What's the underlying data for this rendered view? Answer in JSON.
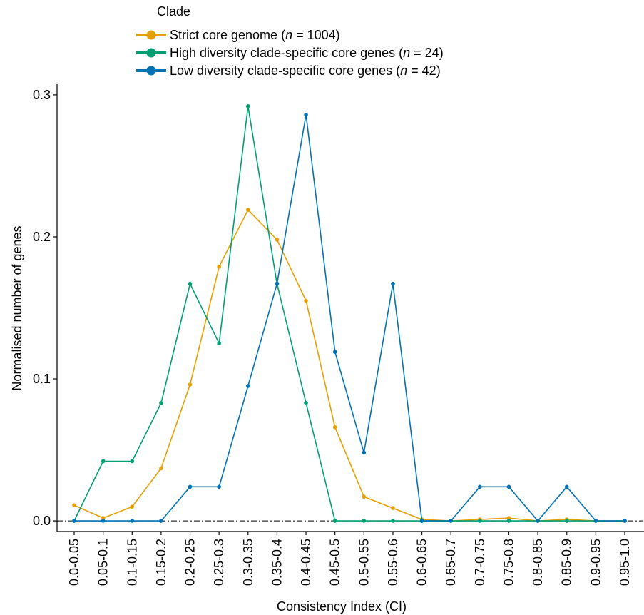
{
  "chart_data": {
    "type": "line",
    "legend": {
      "title": "Clade",
      "placement": "top-left",
      "entries": [
        {
          "prefix": "Strict core genome (",
          "n_symbol": "n",
          "suffix": " = 1004)"
        },
        {
          "prefix": "High diversity clade-specific core genes (",
          "n_symbol": "n",
          "suffix": " = 24)"
        },
        {
          "prefix": "Low diversity clade-specific core genes (",
          "n_symbol": "n",
          "suffix": " = 42)"
        }
      ]
    },
    "xlabel": "Consistency Index (CI)",
    "ylabel": "Normalised number of genes",
    "ylim": [
      -0.0075,
      0.3075
    ],
    "yticks": [
      0.0,
      0.1,
      0.2,
      0.3
    ],
    "ytick_labels": [
      "0.0",
      "0.1",
      "0.2",
      "0.3"
    ],
    "reference_line": {
      "y": 0,
      "style": "dash-dot"
    },
    "grid": false,
    "categories": [
      "0.0-0.05",
      "0.05-0.1",
      "0.1-0.15",
      "0.15-0.2",
      "0.2-0.25",
      "0.25-0.3",
      "0.3-0.35",
      "0.35-0.4",
      "0.4-0.45",
      "0.45-0.5",
      "0.5-0.55",
      "0.55-0.6",
      "0.6-0.65",
      "0.65-0.7",
      "0.7-0.75",
      "0.75-0.8",
      "0.8-0.85",
      "0.85-0.9",
      "0.9-0.95",
      "0.95-1.0"
    ],
    "series": [
      {
        "color": "#E69F00",
        "values": [
          0.011,
          0.002,
          0.01,
          0.037,
          0.096,
          0.179,
          0.219,
          0.198,
          0.155,
          0.066,
          0.017,
          0.009,
          0.001,
          0.0,
          0.001,
          0.002,
          0.0,
          0.001,
          0.0,
          0.0
        ]
      },
      {
        "color": "#009E73",
        "values": [
          0.0,
          0.042,
          0.042,
          0.083,
          0.167,
          0.125,
          0.292,
          0.167,
          0.083,
          0.0,
          0.0,
          0.0,
          0.0,
          0.0,
          0.0,
          0.0,
          0.0,
          0.0,
          0.0,
          0.0
        ]
      },
      {
        "color": "#0072B2",
        "values": [
          0.0,
          0.0,
          0.0,
          0.0,
          0.024,
          0.024,
          0.095,
          0.167,
          0.286,
          0.119,
          0.048,
          0.167,
          0.0,
          0.0,
          0.024,
          0.024,
          0.0,
          0.024,
          0.0,
          0.0
        ]
      }
    ]
  }
}
